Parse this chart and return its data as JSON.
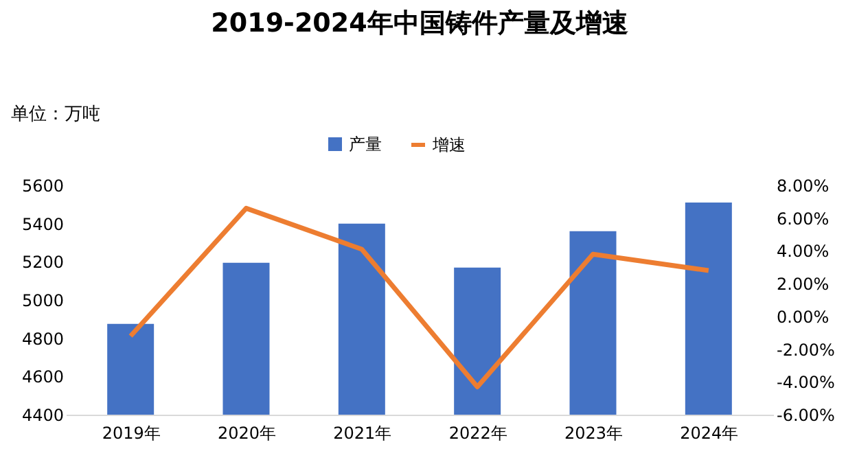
{
  "chart_data": {
    "type": "bar",
    "title": "2019-2024年中国铸件产量及增速",
    "annotations": [
      "单位：万吨"
    ],
    "categories": [
      "2019年",
      "2020年",
      "2021年",
      "2022年",
      "2023年",
      "2024年"
    ],
    "series": [
      {
        "name": "产量",
        "color": "#4472c4",
        "values": [
          4875,
          5195,
          5400,
          5170,
          5360,
          5510
        ]
      },
      {
        "name": "增速",
        "type": "line",
        "axis": "y2",
        "color": "#ed7d31",
        "values": [
          -1.2,
          6.6,
          4.1,
          -4.3,
          3.8,
          2.8
        ]
      }
    ],
    "ylim": [
      4400,
      5600
    ],
    "yticks": [
      4400,
      4600,
      4800,
      5000,
      5200,
      5400,
      5600
    ],
    "y2lim": [
      -6,
      8
    ],
    "y2ticks": [
      {
        "value": -6,
        "label": "-6.00%"
      },
      {
        "value": -4,
        "label": "-4.00%"
      },
      {
        "value": -2,
        "label": "-2.00%"
      },
      {
        "value": 0,
        "label": "0.00%"
      },
      {
        "value": 2,
        "label": "2.00%"
      },
      {
        "value": 4,
        "label": "4.00%"
      },
      {
        "value": 6,
        "label": "6.00%"
      },
      {
        "value": 8,
        "label": "8.00%"
      }
    ],
    "legend": "top",
    "grid": false,
    "marker": "none",
    "line_style": "solid"
  }
}
